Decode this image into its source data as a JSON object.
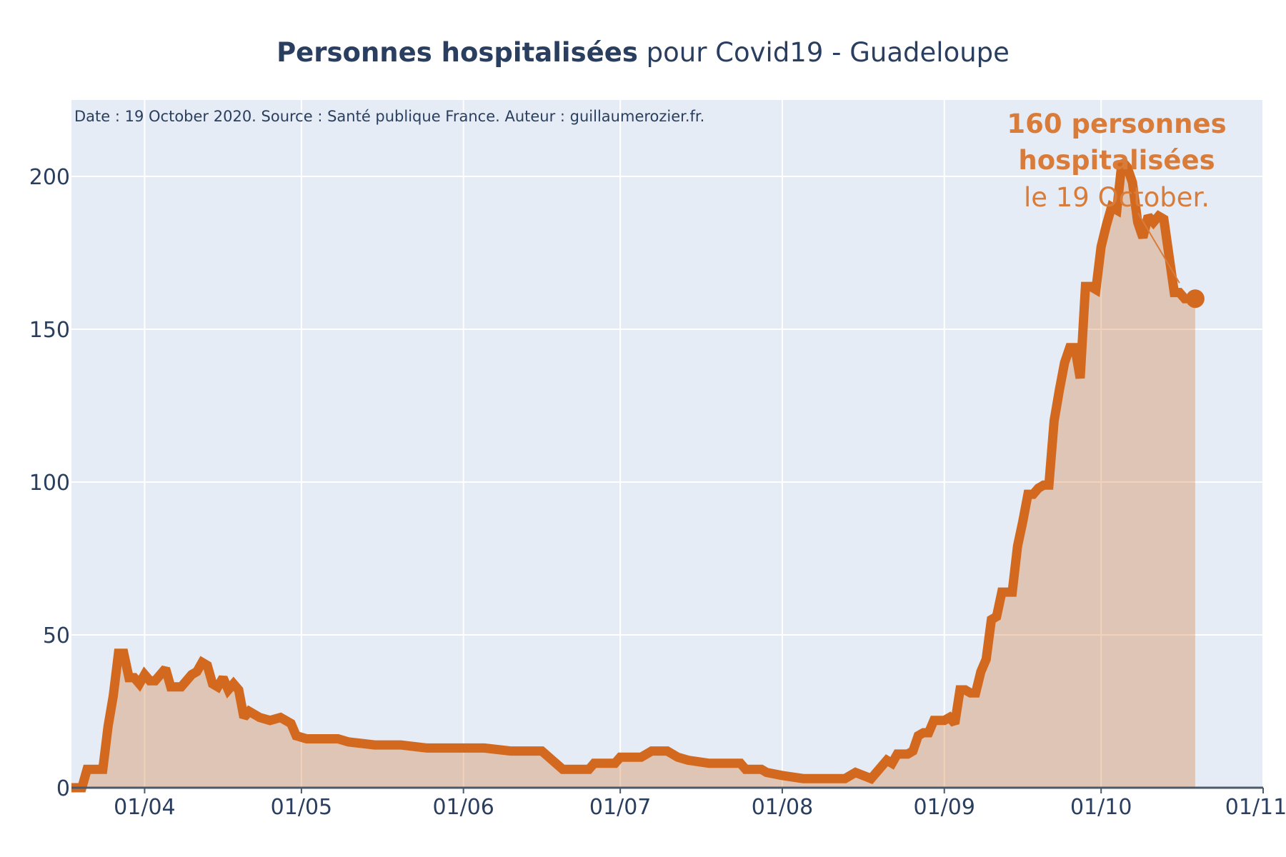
{
  "chart_data": {
    "type": "area",
    "title_bold": "Personnes hospitalisées",
    "title_rest": " pour Covid19 - Guadeloupe",
    "note": "Date : 19 October 2020. Source : Santé publique France. Auteur : guillaumerozier.fr.",
    "xlabel": "",
    "ylabel": "",
    "xlim": [
      "2020-03-18",
      "2020-11-01"
    ],
    "ylim": [
      0,
      225
    ],
    "grid": true,
    "x_ticks": [
      {
        "date": "2020-04-01",
        "label": "01/04"
      },
      {
        "date": "2020-05-01",
        "label": "01/05"
      },
      {
        "date": "2020-06-01",
        "label": "01/06"
      },
      {
        "date": "2020-07-01",
        "label": "01/07"
      },
      {
        "date": "2020-08-01",
        "label": "01/08"
      },
      {
        "date": "2020-09-01",
        "label": "01/09"
      },
      {
        "date": "2020-10-01",
        "label": "01/10"
      },
      {
        "date": "2020-11-01",
        "label": "01/11"
      }
    ],
    "y_ticks": [
      {
        "value": 0,
        "label": "0"
      },
      {
        "value": 50,
        "label": "50"
      },
      {
        "value": 100,
        "label": "100"
      },
      {
        "value": 150,
        "label": "150"
      },
      {
        "value": 200,
        "label": "200"
      }
    ],
    "colors": {
      "line": "#d2691e",
      "fill": "rgba(210,105,30,0.3)",
      "annotation": "#d97c3a",
      "plot_bg": "#e5ecf6",
      "grid": "#ffffff"
    },
    "series": [
      {
        "x": [
          "2020-03-18",
          "2020-03-20",
          "2020-03-21",
          "2020-03-23",
          "2020-03-24",
          "2020-03-25",
          "2020-03-26",
          "2020-03-27",
          "2020-03-28",
          "2020-03-29",
          "2020-03-30",
          "2020-03-31",
          "2020-04-01",
          "2020-04-02",
          "2020-04-03",
          "2020-04-05",
          "2020-04-06",
          "2020-04-07",
          "2020-04-08",
          "2020-04-10",
          "2020-04-11",
          "2020-04-12",
          "2020-04-13",
          "2020-04-14",
          "2020-04-15",
          "2020-04-16",
          "2020-04-17",
          "2020-04-18",
          "2020-04-19",
          "2020-04-20",
          "2020-04-21",
          "2020-04-23",
          "2020-04-25",
          "2020-04-27",
          "2020-04-29",
          "2020-04-30",
          "2020-05-02",
          "2020-05-06",
          "2020-05-08",
          "2020-05-10",
          "2020-05-15",
          "2020-05-19",
          "2020-05-20",
          "2020-05-25",
          "2020-06-02",
          "2020-06-05",
          "2020-06-10",
          "2020-06-15",
          "2020-06-16",
          "2020-06-18",
          "2020-06-20",
          "2020-06-25",
          "2020-06-26",
          "2020-06-30",
          "2020-07-01",
          "2020-07-05",
          "2020-07-07",
          "2020-07-10",
          "2020-07-12",
          "2020-07-14",
          "2020-07-18",
          "2020-07-24",
          "2020-07-25",
          "2020-07-28",
          "2020-07-29",
          "2020-08-01",
          "2020-08-05",
          "2020-08-06",
          "2020-08-13",
          "2020-08-15",
          "2020-08-18",
          "2020-08-21",
          "2020-08-22",
          "2020-08-23",
          "2020-08-24",
          "2020-08-25",
          "2020-08-26",
          "2020-08-27",
          "2020-08-28",
          "2020-08-29",
          "2020-08-30",
          "2020-08-31",
          "2020-09-01",
          "2020-09-02",
          "2020-09-03",
          "2020-09-04",
          "2020-09-05",
          "2020-09-06",
          "2020-09-07",
          "2020-09-08",
          "2020-09-09",
          "2020-09-10",
          "2020-09-11",
          "2020-09-12",
          "2020-09-13",
          "2020-09-14",
          "2020-09-15",
          "2020-09-16",
          "2020-09-17",
          "2020-09-18",
          "2020-09-19",
          "2020-09-20",
          "2020-09-21",
          "2020-09-22",
          "2020-09-23",
          "2020-09-24",
          "2020-09-25",
          "2020-09-26",
          "2020-09-27",
          "2020-09-28",
          "2020-09-29",
          "2020-09-30",
          "2020-10-01",
          "2020-10-02",
          "2020-10-03",
          "2020-10-04",
          "2020-10-05",
          "2020-10-06",
          "2020-10-07",
          "2020-10-08",
          "2020-10-09",
          "2020-10-10",
          "2020-10-11",
          "2020-10-12",
          "2020-10-13",
          "2020-10-14",
          "2020-10-15",
          "2020-10-16",
          "2020-10-17",
          "2020-10-18",
          "2020-10-19"
        ],
        "y": [
          0,
          0,
          6,
          6,
          6,
          20,
          30,
          44,
          44,
          36,
          36,
          34,
          37,
          35,
          35,
          39,
          33,
          33,
          33,
          37,
          38,
          41,
          40,
          34,
          33,
          36,
          32,
          34,
          32,
          23,
          25,
          23,
          22,
          23,
          21,
          17,
          16,
          16,
          16,
          15,
          14,
          14,
          14,
          13,
          13,
          13,
          12,
          12,
          12,
          9,
          6,
          6,
          8,
          8,
          10,
          10,
          12,
          12,
          10,
          9,
          8,
          8,
          6,
          6,
          5,
          4,
          3,
          3,
          3,
          5,
          3,
          9,
          8,
          11,
          11,
          11,
          12,
          17,
          18,
          18,
          22,
          22,
          22,
          23,
          21,
          32,
          32,
          31,
          31,
          38,
          42,
          55,
          56,
          64,
          64,
          64,
          79,
          87,
          96,
          96,
          98,
          99,
          99,
          120,
          130,
          139,
          144,
          144,
          134,
          164,
          164,
          163,
          177,
          184,
          190,
          189,
          205,
          203,
          198,
          185,
          180,
          187,
          185,
          187,
          186,
          174,
          162,
          162,
          160,
          160,
          160
        ],
        "marker": {
          "x": "2020-10-19",
          "y": 160
        }
      }
    ],
    "annotation": {
      "line1": "160 personnes",
      "line2": "hospitalisées",
      "line3": "le 19 October."
    }
  }
}
